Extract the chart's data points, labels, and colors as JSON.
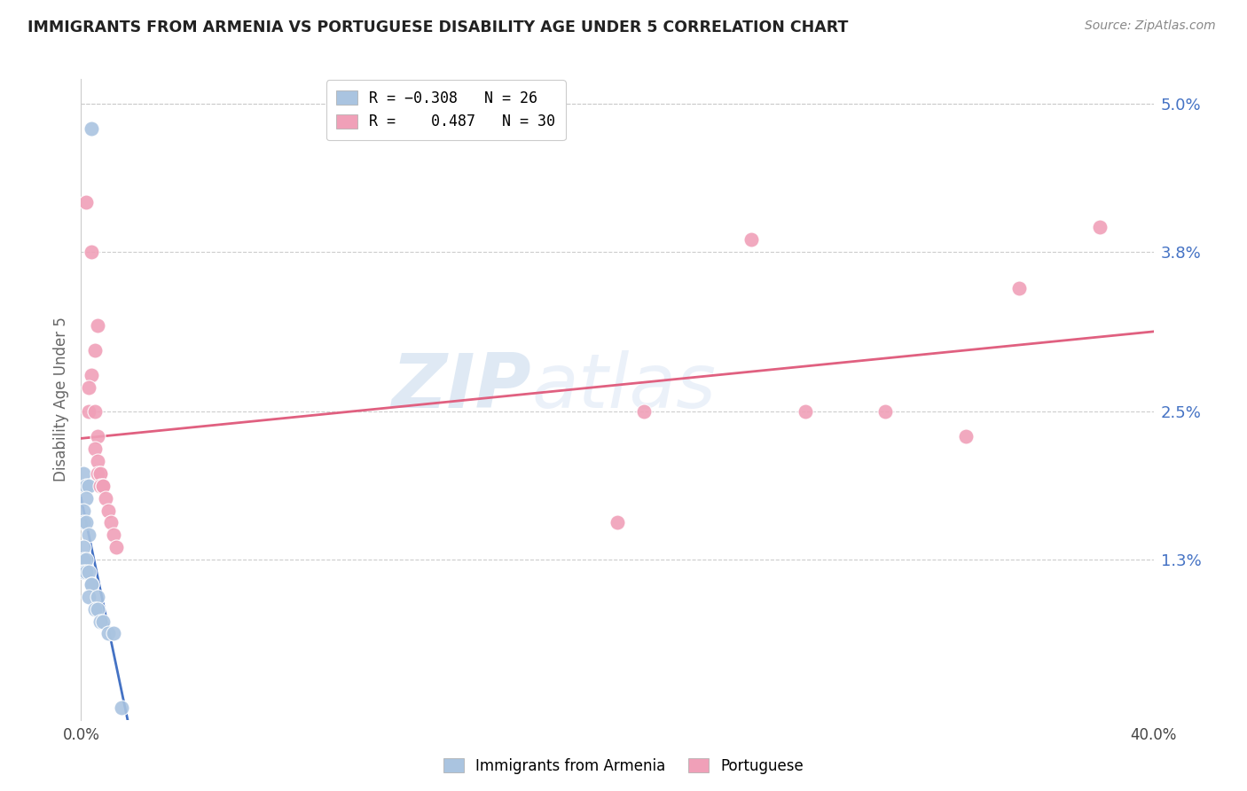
{
  "title": "IMMIGRANTS FROM ARMENIA VS PORTUGUESE DISABILITY AGE UNDER 5 CORRELATION CHART",
  "source": "Source: ZipAtlas.com",
  "ylabel": "Disability Age Under 5",
  "yticks": [
    0.0,
    0.013,
    0.025,
    0.038,
    0.05
  ],
  "ytick_labels": [
    "",
    "1.3%",
    "2.5%",
    "3.8%",
    "5.0%"
  ],
  "xticks": [
    0.0,
    0.08,
    0.16,
    0.24,
    0.32,
    0.4
  ],
  "xtick_labels": [
    "0.0%",
    "",
    "",
    "",
    "",
    "40.0%"
  ],
  "watermark": "ZIPatlas",
  "armenia_color": "#aac4e0",
  "portuguese_color": "#f0a0b8",
  "armenia_line_color": "#4472c4",
  "portuguese_line_color": "#e06080",
  "armenia_points": [
    [
      0.004,
      0.048
    ],
    [
      0.001,
      0.02
    ],
    [
      0.002,
      0.019
    ],
    [
      0.003,
      0.019
    ],
    [
      0.002,
      0.018
    ],
    [
      0.001,
      0.017
    ],
    [
      0.001,
      0.016
    ],
    [
      0.002,
      0.016
    ],
    [
      0.003,
      0.015
    ],
    [
      0.001,
      0.014
    ],
    [
      0.001,
      0.013
    ],
    [
      0.002,
      0.013
    ],
    [
      0.001,
      0.012
    ],
    [
      0.002,
      0.012
    ],
    [
      0.003,
      0.012
    ],
    [
      0.004,
      0.011
    ],
    [
      0.004,
      0.011
    ],
    [
      0.003,
      0.01
    ],
    [
      0.006,
      0.01
    ],
    [
      0.005,
      0.009
    ],
    [
      0.006,
      0.009
    ],
    [
      0.007,
      0.008
    ],
    [
      0.008,
      0.008
    ],
    [
      0.01,
      0.007
    ],
    [
      0.012,
      0.007
    ],
    [
      0.015,
      0.001
    ]
  ],
  "portuguese_points": [
    [
      0.002,
      0.042
    ],
    [
      0.004,
      0.038
    ],
    [
      0.006,
      0.032
    ],
    [
      0.005,
      0.03
    ],
    [
      0.004,
      0.028
    ],
    [
      0.003,
      0.027
    ],
    [
      0.003,
      0.025
    ],
    [
      0.005,
      0.025
    ],
    [
      0.006,
      0.023
    ],
    [
      0.005,
      0.022
    ],
    [
      0.006,
      0.021
    ],
    [
      0.007,
      0.02
    ],
    [
      0.006,
      0.02
    ],
    [
      0.007,
      0.02
    ],
    [
      0.007,
      0.019
    ],
    [
      0.008,
      0.019
    ],
    [
      0.008,
      0.019
    ],
    [
      0.009,
      0.018
    ],
    [
      0.01,
      0.017
    ],
    [
      0.011,
      0.016
    ],
    [
      0.012,
      0.015
    ],
    [
      0.013,
      0.014
    ],
    [
      0.2,
      0.016
    ],
    [
      0.21,
      0.025
    ],
    [
      0.25,
      0.039
    ],
    [
      0.27,
      0.025
    ],
    [
      0.3,
      0.025
    ],
    [
      0.33,
      0.023
    ],
    [
      0.35,
      0.035
    ],
    [
      0.38,
      0.04
    ]
  ]
}
